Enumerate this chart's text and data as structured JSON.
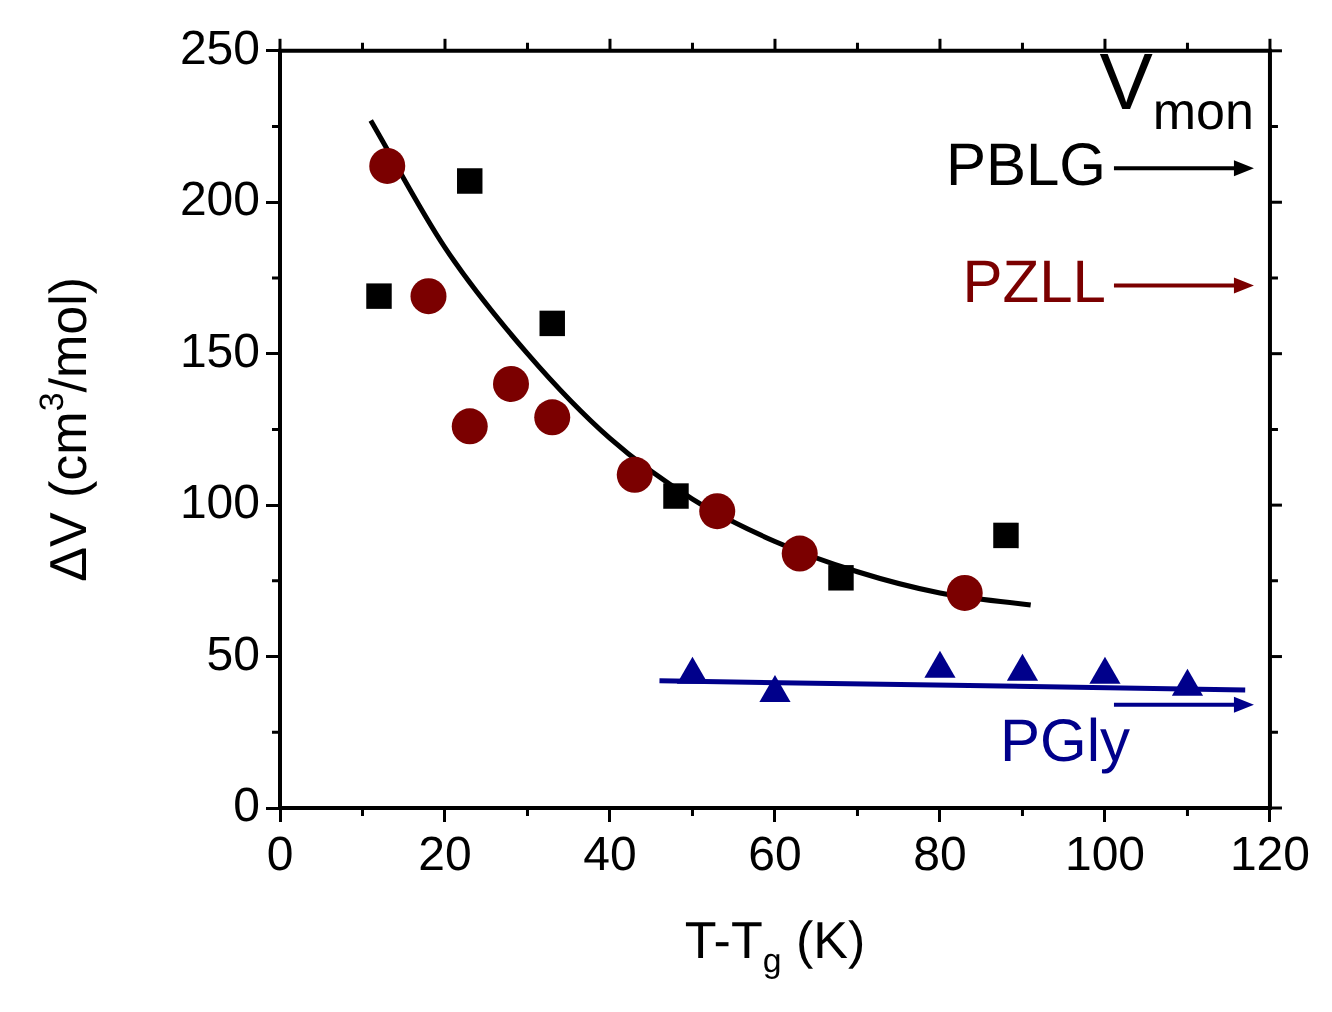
{
  "chart_data": {
    "type": "scatter",
    "xlabel": "T-T$_{g}$ (K)",
    "ylabel": "ΔV (cm$^{3}$/mol)",
    "xlim": [
      0,
      120
    ],
    "xticks": [
      0,
      20,
      40,
      60,
      80,
      100,
      120
    ],
    "ylim": [
      0,
      250
    ],
    "yticks": [
      0,
      50,
      100,
      150,
      200,
      250
    ],
    "grid": false,
    "legend": "right",
    "annotations": [
      "V$_{mon}$"
    ],
    "series": [
      {
        "name": "PBLG",
        "color": "#000000",
        "marker": "square",
        "x": [
          12,
          23,
          33,
          48,
          68,
          88
        ],
        "values": [
          169,
          207,
          160,
          103,
          76,
          90
        ]
      },
      {
        "name": "PZLL",
        "color": "#7b0000",
        "marker": "circle",
        "x": [
          13,
          18,
          23,
          28,
          33,
          43,
          53,
          63,
          83
        ],
        "values": [
          212,
          169,
          126,
          140,
          129,
          110,
          98,
          84,
          71
        ]
      },
      {
        "name": "PGly",
        "color": "#00008b",
        "marker": "triangle",
        "x": [
          50,
          60,
          80,
          90,
          100,
          110
        ],
        "values": [
          44,
          38,
          46,
          45,
          44,
          40
        ]
      },
      {
        "type": "line",
        "color": "#000000",
        "marker": "none",
        "x": [
          11,
          20,
          30,
          40,
          50,
          60,
          70,
          80,
          91
        ],
        "values": [
          227,
          185,
          150,
          122,
          102,
          88,
          78,
          71,
          67
        ]
      },
      {
        "type": "line",
        "color": "#00008b",
        "marker": "none",
        "x": [
          46,
          117
        ],
        "values": [
          42,
          39
        ]
      }
    ]
  }
}
